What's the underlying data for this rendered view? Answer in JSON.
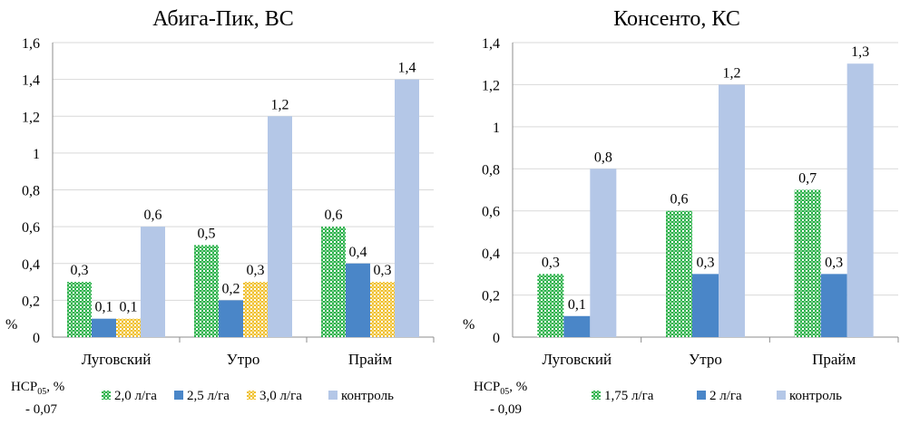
{
  "colors": {
    "green": "#2bb24c",
    "blue": "#4a86c8",
    "yellow": "#f0c030",
    "light_blue": "#b4c7e7",
    "gridline": "#d9d9d9",
    "axis": "#8c8c8c"
  },
  "chart_data": [
    {
      "type": "bar",
      "title": "Абига-Пик, ВС",
      "ylabel": "%",
      "ylim": [
        0,
        1.6
      ],
      "yticks": [
        "0",
        "0,2",
        "0,4",
        "0,6",
        "0,8",
        "1",
        "1,2",
        "1,4",
        "1,6"
      ],
      "ytick_values": [
        0,
        0.2,
        0.4,
        0.6,
        0.8,
        1.0,
        1.2,
        1.4,
        1.6
      ],
      "categories": [
        "Луговский",
        "Утро",
        "Прайм"
      ],
      "series": [
        {
          "name": "2,0 л/га",
          "color_key": "green",
          "pattern": "checker",
          "values": [
            0.3,
            0.5,
            0.6
          ],
          "labels": [
            "0,3",
            "0,5",
            "0,6"
          ]
        },
        {
          "name": "2,5 л/га",
          "color_key": "blue",
          "pattern": "solid",
          "values": [
            0.1,
            0.2,
            0.4
          ],
          "labels": [
            "0,1",
            "0,2",
            "0,4"
          ]
        },
        {
          "name": "3,0 л/га",
          "color_key": "yellow",
          "pattern": "checker",
          "values": [
            0.1,
            0.3,
            0.3
          ],
          "labels": [
            "0,1",
            "0,3",
            "0,3"
          ]
        },
        {
          "name": "контроль",
          "color_key": "light_blue",
          "pattern": "solid",
          "values": [
            0.6,
            1.2,
            1.4
          ],
          "labels": [
            "0,6",
            "1,2",
            "1,4"
          ]
        }
      ],
      "hsr_label": "НСР",
      "hsr_sub": "05",
      "hsr_unit": ", %",
      "hsr_value": "- 0,07",
      "legend": "bottom"
    },
    {
      "type": "bar",
      "title": "Консенто, КС",
      "ylabel": "%",
      "ylim": [
        0,
        1.4
      ],
      "yticks": [
        "0",
        "0,2",
        "0,4",
        "0,6",
        "0,8",
        "1",
        "1,2",
        "1,4"
      ],
      "ytick_values": [
        0,
        0.2,
        0.4,
        0.6,
        0.8,
        1.0,
        1.2,
        1.4
      ],
      "categories": [
        "Луговский",
        "Утро",
        "Прайм"
      ],
      "series": [
        {
          "name": "1,75 л/га",
          "color_key": "green",
          "pattern": "checker",
          "values": [
            0.3,
            0.6,
            0.7
          ],
          "labels": [
            "0,3",
            "0,6",
            "0,7"
          ]
        },
        {
          "name": "2 л/га",
          "color_key": "blue",
          "pattern": "solid",
          "values": [
            0.1,
            0.3,
            0.3
          ],
          "labels": [
            "0,1",
            "0,3",
            "0,3"
          ]
        },
        {
          "name": "контроль",
          "color_key": "light_blue",
          "pattern": "solid",
          "values": [
            0.8,
            1.2,
            1.3
          ],
          "labels": [
            "0,8",
            "1,2",
            "1,3"
          ]
        }
      ],
      "hsr_label": "НСР",
      "hsr_sub": "05",
      "hsr_unit": ", %",
      "hsr_value": "- 0,09",
      "legend": "bottom"
    }
  ]
}
